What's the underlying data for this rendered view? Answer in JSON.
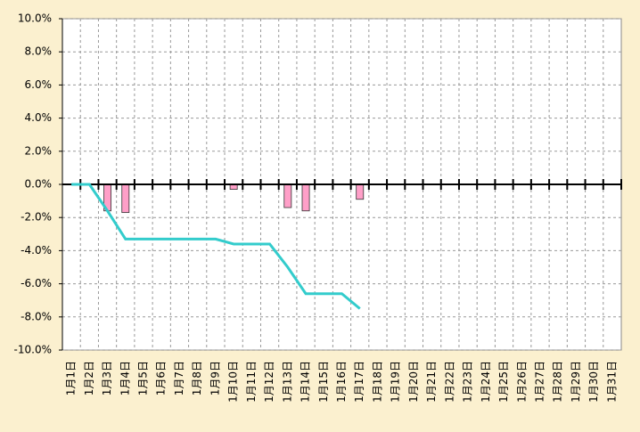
{
  "chart_data": {
    "type": "bar",
    "categories": [
      "1月1日",
      "1月2日",
      "1月3日",
      "1月4日",
      "1月5日",
      "1月6日",
      "1月7日",
      "1月8日",
      "1月9日",
      "1月10日",
      "1月11日",
      "1月12日",
      "1月13日",
      "1月14日",
      "1月15日",
      "1月16日",
      "1月17日",
      "1月18日",
      "1月19日",
      "1月20日",
      "1月21日",
      "1月22日",
      "1月23日",
      "1月24日",
      "1月25日",
      "1月26日",
      "1月27日",
      "1月28日",
      "1月29日",
      "1月30日",
      "1月31日"
    ],
    "series": [
      {
        "type": "bar",
        "color": "#ff9fc8",
        "values": [
          0,
          0,
          -1.6,
          -1.7,
          0,
          0,
          0,
          0,
          0,
          -0.3,
          0,
          0,
          -1.4,
          -1.6,
          0,
          0,
          -0.9,
          null,
          null,
          null,
          null,
          null,
          null,
          null,
          null,
          null,
          null,
          null,
          null,
          null,
          null
        ]
      },
      {
        "type": "line",
        "color": "#33cccc",
        "values": [
          0,
          0,
          -1.6,
          -3.3,
          -3.3,
          -3.3,
          -3.3,
          -3.3,
          -3.3,
          -3.6,
          -3.6,
          -3.6,
          -5.0,
          -6.6,
          -6.6,
          -6.6,
          -7.5,
          null,
          null,
          null,
          null,
          null,
          null,
          null,
          null,
          null,
          null,
          null,
          null,
          null,
          null
        ]
      }
    ],
    "ylim": [
      -10,
      10
    ],
    "yticks": [
      {
        "value": -10,
        "label": "-10.0%"
      },
      {
        "value": -8,
        "label": "-8.0%"
      },
      {
        "value": -6,
        "label": "-6.0%"
      },
      {
        "value": -4,
        "label": "-4.0%"
      },
      {
        "value": -2,
        "label": "-2.0%"
      },
      {
        "value": 0,
        "label": "0.0%"
      },
      {
        "value": 2,
        "label": "2.0%"
      },
      {
        "value": 4,
        "label": "4.0%"
      },
      {
        "value": 6,
        "label": "6.0%"
      },
      {
        "value": 8,
        "label": "8.0%"
      },
      {
        "value": 10,
        "label": "10.0%"
      }
    ],
    "grid": true
  }
}
